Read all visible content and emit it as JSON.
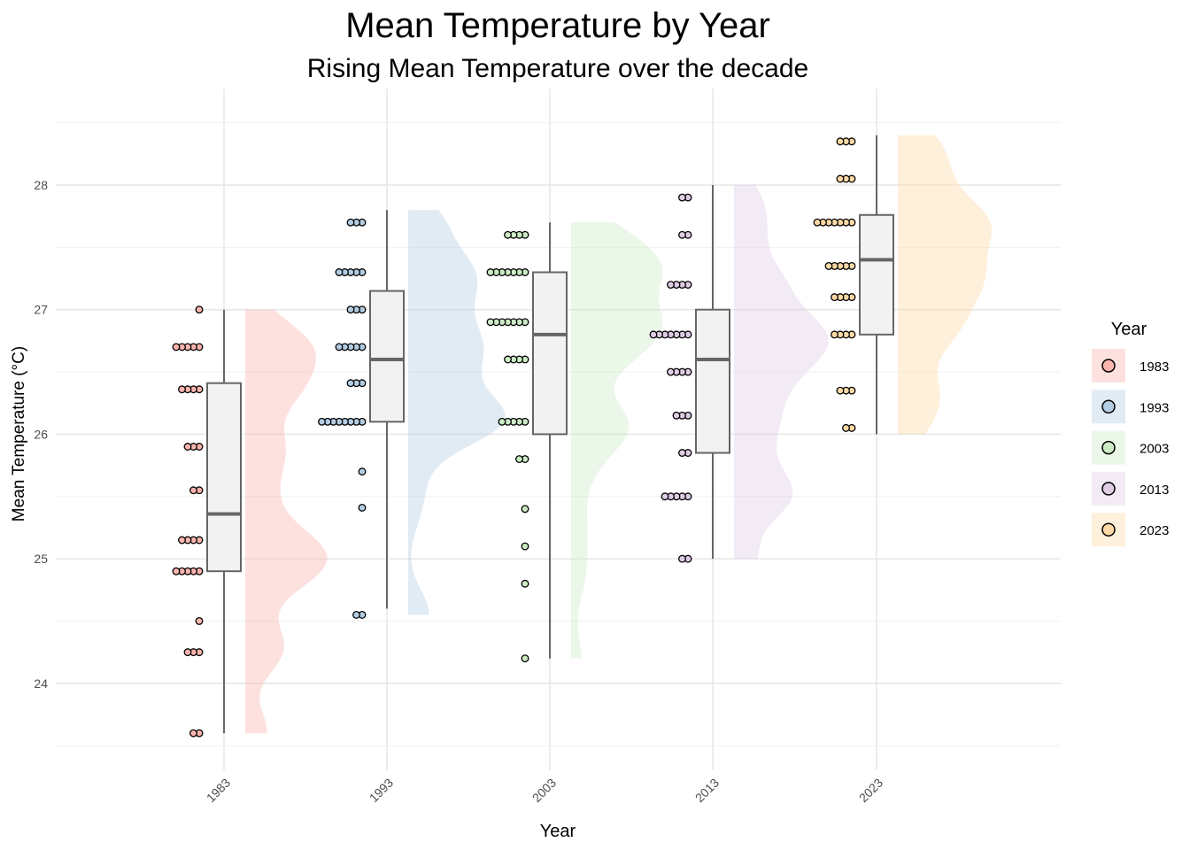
{
  "chart_data": {
    "type": "raincloud",
    "title": "Mean Temperature by Year",
    "subtitle": "Rising Mean Temperature over the decade",
    "xlabel": "Year",
    "ylabel": "Mean Temperature (°C)",
    "ylim": [
      23.5,
      28.5
    ],
    "yticks": [
      "24",
      "25",
      "26",
      "27",
      "28"
    ],
    "categories": [
      "1983",
      "1993",
      "2003",
      "2013",
      "2023"
    ],
    "legend": {
      "title": "Year",
      "position": "right"
    },
    "grid": true,
    "groups": [
      {
        "year": "1983",
        "color": "#FBB4AE",
        "dots": [
          [
            27.0,
            1
          ],
          [
            26.7,
            5
          ],
          [
            26.36,
            4
          ],
          [
            25.9,
            3
          ],
          [
            25.55,
            2
          ],
          [
            25.15,
            4
          ],
          [
            24.9,
            5
          ],
          [
            24.5,
            1
          ],
          [
            24.25,
            3
          ],
          [
            23.6,
            2
          ]
        ],
        "box": {
          "min": 23.6,
          "q1": 24.9,
          "median": 25.36,
          "q3": 26.41,
          "max": 27.0
        }
      },
      {
        "year": "1993",
        "color": "#B3CDE3",
        "dots": [
          [
            27.7,
            3
          ],
          [
            27.3,
            5
          ],
          [
            27.0,
            3
          ],
          [
            26.7,
            5
          ],
          [
            26.41,
            3
          ],
          [
            26.1,
            8
          ],
          [
            25.7,
            1
          ],
          [
            25.41,
            1
          ],
          [
            24.55,
            2
          ]
        ],
        "box": {
          "min": 24.6,
          "q1": 26.1,
          "median": 26.6,
          "q3": 27.15,
          "max": 27.8
        }
      },
      {
        "year": "2003",
        "color": "#CCEBC5",
        "dots": [
          [
            27.6,
            4
          ],
          [
            27.3,
            7
          ],
          [
            26.9,
            7
          ],
          [
            26.6,
            4
          ],
          [
            26.1,
            5
          ],
          [
            25.8,
            2
          ],
          [
            25.4,
            1
          ],
          [
            25.1,
            1
          ],
          [
            24.8,
            1
          ],
          [
            24.2,
            1
          ]
        ],
        "box": {
          "min": 24.2,
          "q1": 26.0,
          "median": 26.8,
          "q3": 27.3,
          "max": 27.7
        }
      },
      {
        "year": "2013",
        "color": "#DECBE4",
        "dots": [
          [
            27.9,
            2
          ],
          [
            27.6,
            2
          ],
          [
            27.2,
            4
          ],
          [
            26.8,
            7
          ],
          [
            26.5,
            4
          ],
          [
            26.15,
            3
          ],
          [
            25.85,
            2
          ],
          [
            25.5,
            5
          ],
          [
            25.0,
            2
          ]
        ],
        "box": {
          "min": 25.0,
          "q1": 25.85,
          "median": 26.6,
          "q3": 27.0,
          "max": 28.0
        }
      },
      {
        "year": "2023",
        "color": "#FED9A6",
        "dots": [
          [
            28.35,
            3
          ],
          [
            28.05,
            3
          ],
          [
            27.7,
            7
          ],
          [
            27.35,
            5
          ],
          [
            27.1,
            4
          ],
          [
            26.8,
            4
          ],
          [
            26.35,
            3
          ],
          [
            26.05,
            2
          ]
        ],
        "box": {
          "min": 26.0,
          "q1": 26.8,
          "median": 27.4,
          "q3": 27.76,
          "max": 28.4
        }
      }
    ]
  }
}
